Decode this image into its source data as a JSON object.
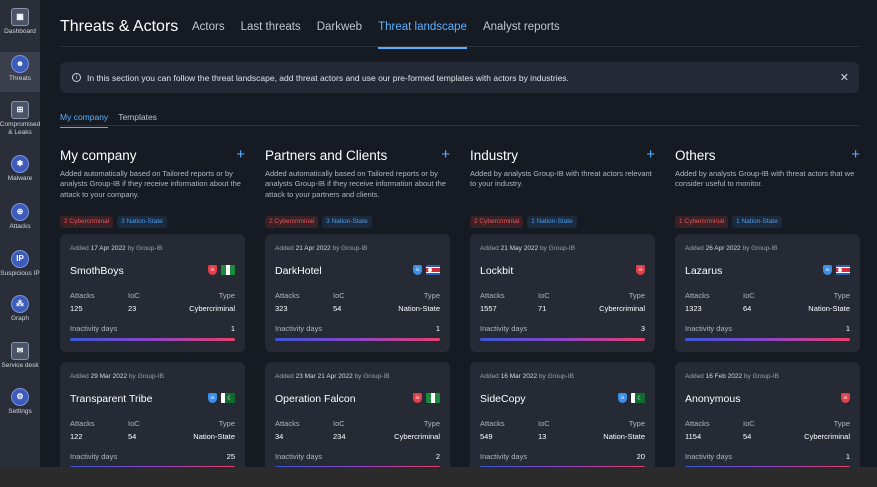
{
  "nav": [
    {
      "label": "Dashboard",
      "icon": "dashboard-icon",
      "glyph": "▦"
    },
    {
      "label": "Threats",
      "icon": "threats-icon",
      "glyph": "☻"
    },
    {
      "label": "Compromised & Leaks",
      "icon": "compromised-icon",
      "glyph": "⊞"
    },
    {
      "label": "Malware",
      "icon": "malware-icon",
      "glyph": "✱"
    },
    {
      "label": "Attacks",
      "icon": "attacks-icon",
      "glyph": "⊕"
    },
    {
      "label": "Suspicious IP",
      "icon": "ip-icon",
      "glyph": "IP"
    },
    {
      "label": "Graph",
      "icon": "graph-icon",
      "glyph": "⁂"
    },
    {
      "label": "Service desk",
      "icon": "service-desk-icon",
      "glyph": "✉"
    },
    {
      "label": "Settings",
      "icon": "settings-icon",
      "glyph": "⚙"
    }
  ],
  "header": {
    "title": "Threats & Actors",
    "tabs": [
      "Actors",
      "Last threats",
      "Darkweb",
      "Threat landscape",
      "Analyst reports"
    ],
    "active_tab": "Threat landscape"
  },
  "info": {
    "text": "In this section you can follow the threat landscape, add threat actors and use our pre-formed templates with actors by industries.",
    "icon": "info-icon",
    "close_icon": "close-icon"
  },
  "sub_tabs": [
    "My company",
    "Templates"
  ],
  "sub_active": "My company",
  "labels": {
    "attacks": "Attacks",
    "ioc": "IoC",
    "type": "Type",
    "inactivity": "Inactivity days",
    "added": "Added",
    "by": "by Group-IB",
    "add": "+"
  },
  "columns": [
    {
      "title": "My company",
      "desc": "Added automatically based on Tailored reports or by analysts Group-IB if they receive information about the attack to your company.",
      "badge_red": "2 Cybercriminal",
      "badge_blue": "3 Nation-State",
      "cards": [
        {
          "date": "17 Apr 2022",
          "name": "SmothBoys",
          "attacks": "125",
          "ioc": "23",
          "type": "Cybercriminal",
          "inactivity": "1",
          "shield": "red",
          "flag": "NG"
        },
        {
          "date": "29 Mar 2022",
          "name": "Transparent Tribe",
          "attacks": "122",
          "ioc": "54",
          "type": "Nation-State",
          "inactivity": "25",
          "shield": "blue",
          "flag": "PK"
        }
      ]
    },
    {
      "title": "Partners and Clients",
      "desc": "Added automatically based on Tailored reports or by analysts Group-IB if they receive information about the attack to your partners and clients.",
      "badge_red": "2 Cybercriminal",
      "badge_blue": "3 Nation-State",
      "cards": [
        {
          "date": "21 Apr 2022",
          "name": "DarkHotel",
          "attacks": "323",
          "ioc": "54",
          "type": "Nation-State",
          "inactivity": "1",
          "shield": "blue",
          "flag": "KP"
        },
        {
          "date": "23 Mar 21 Apr 2022",
          "name": "Operation Falcon",
          "attacks": "34",
          "ioc": "234",
          "type": "Cybercriminal",
          "inactivity": "2",
          "shield": "red",
          "flag": "NG"
        }
      ]
    },
    {
      "title": "Industry",
      "desc": "Added by analysts Group-IB with threat actors relevant to your industry.",
      "badge_red": "2 Cybercriminal",
      "badge_blue": "1 Nation-State",
      "cards": [
        {
          "date": "21 May 2022",
          "name": "Lockbit",
          "attacks": "1557",
          "ioc": "71",
          "type": "Cybercriminal",
          "inactivity": "3",
          "shield": "red",
          "flag": ""
        },
        {
          "date": "16 Mar 2022",
          "name": "SideCopy",
          "attacks": "549",
          "ioc": "13",
          "type": "Nation-State",
          "inactivity": "20",
          "shield": "blue",
          "flag": "PK"
        }
      ]
    },
    {
      "title": "Others",
      "desc": "Added by analysts Group-IB with threat actors that we consider useful to monitor.",
      "badge_red": "1 Cybercriminal",
      "badge_blue": "1 Nation-State",
      "cards": [
        {
          "date": "26 Apr 2022",
          "name": "Lazarus",
          "attacks": "1323",
          "ioc": "64",
          "type": "Nation-State",
          "inactivity": "1",
          "shield": "blue",
          "flag": "KP"
        },
        {
          "date": "16 Feb 2022",
          "name": "Anonymous",
          "attacks": "1154",
          "ioc": "54",
          "type": "Cybercriminal",
          "inactivity": "1",
          "shield": "red",
          "flag": ""
        }
      ]
    }
  ],
  "colors": {
    "accent": "#5ab0ff",
    "cyber_red": "#e0414b",
    "nation_blue": "#3d8fe6"
  }
}
